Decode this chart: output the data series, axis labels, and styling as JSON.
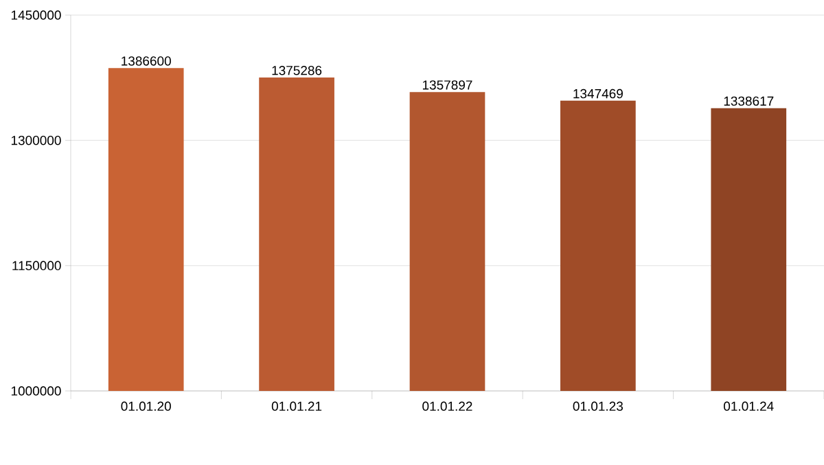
{
  "chart_data": {
    "type": "bar",
    "categories": [
      "01.01.20",
      "01.01.21",
      "01.01.22",
      "01.01.23",
      "01.01.24"
    ],
    "values": [
      1386600,
      1375286,
      1357897,
      1347469,
      1338617
    ],
    "colors": [
      "#c96334",
      "#bb5b32",
      "#b2572f",
      "#a04c28",
      "#8f4424"
    ],
    "ylim": [
      1000000,
      1450000
    ],
    "yticks": [
      1000000,
      1150000,
      1300000,
      1450000
    ],
    "grid": "y",
    "data_labels": true
  }
}
